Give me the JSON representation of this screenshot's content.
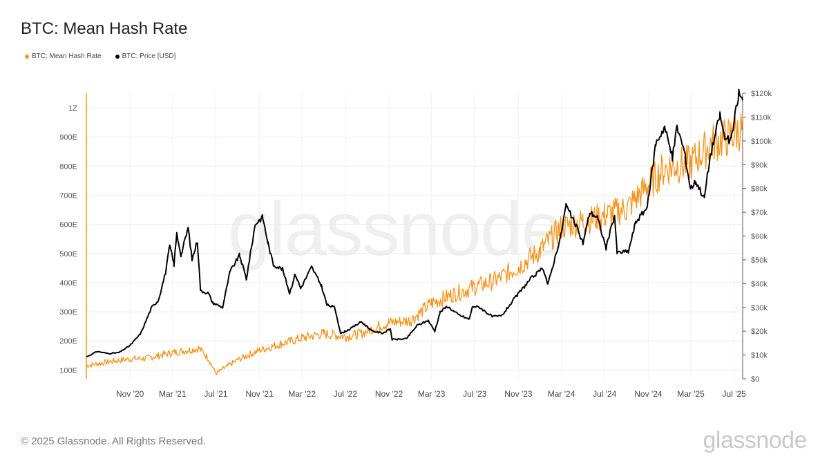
{
  "header": {
    "title": "BTC: Mean Hash Rate"
  },
  "legend": [
    {
      "label": "BTC: Mean Hash Rate",
      "color": "#f7931a"
    },
    {
      "label": "BTC: Price [USD]",
      "color": "#000000"
    }
  ],
  "watermark": "glassnode",
  "footer": {
    "copyright": "© 2025 Glassnode. All Rights Reserved.",
    "logo": "glassnode"
  },
  "chart_data": {
    "type": "line",
    "x_range": [
      "2020-07-01",
      "2025-07-25"
    ],
    "x_ticks": [
      {
        "label": "Nov '20",
        "date": "2020-11-01"
      },
      {
        "label": "Mar '21",
        "date": "2021-03-01"
      },
      {
        "label": "Jul '21",
        "date": "2021-07-01"
      },
      {
        "label": "Nov '21",
        "date": "2021-11-01"
      },
      {
        "label": "Mar '22",
        "date": "2022-03-01"
      },
      {
        "label": "Jul '22",
        "date": "2022-07-01"
      },
      {
        "label": "Nov '22",
        "date": "2022-11-01"
      },
      {
        "label": "Mar '23",
        "date": "2023-03-01"
      },
      {
        "label": "Jul '23",
        "date": "2023-07-01"
      },
      {
        "label": "Nov '23",
        "date": "2023-11-01"
      },
      {
        "label": "Mar '24",
        "date": "2024-03-01"
      },
      {
        "label": "Jul '24",
        "date": "2024-07-01"
      },
      {
        "label": "Nov '24",
        "date": "2024-11-01"
      },
      {
        "label": "Mar '25",
        "date": "2025-03-01"
      },
      {
        "label": "Jul '25",
        "date": "2025-07-01"
      }
    ],
    "y_left": {
      "unit": "EH/s",
      "range": [
        70,
        1050
      ],
      "ticks": [
        {
          "label": "100E",
          "value": 100
        },
        {
          "label": "200E",
          "value": 200
        },
        {
          "label": "300E",
          "value": 300
        },
        {
          "label": "400E",
          "value": 400
        },
        {
          "label": "500E",
          "value": 500
        },
        {
          "label": "600E",
          "value": 600
        },
        {
          "label": "700E",
          "value": 700
        },
        {
          "label": "800E",
          "value": 800
        },
        {
          "label": "900E",
          "value": 900
        },
        {
          "label": "1Z",
          "value": 1000
        }
      ]
    },
    "y_right": {
      "unit": "USD",
      "range": [
        0,
        120000
      ],
      "ticks": [
        {
          "label": "$0",
          "value": 0
        },
        {
          "label": "$10k",
          "value": 10000
        },
        {
          "label": "$20k",
          "value": 20000
        },
        {
          "label": "$30k",
          "value": 30000
        },
        {
          "label": "$40k",
          "value": 40000
        },
        {
          "label": "$50k",
          "value": 50000
        },
        {
          "label": "$60k",
          "value": 60000
        },
        {
          "label": "$70k",
          "value": 70000
        },
        {
          "label": "$80k",
          "value": 80000
        },
        {
          "label": "$90k",
          "value": 90000
        },
        {
          "label": "$100k",
          "value": 100000
        },
        {
          "label": "$110k",
          "value": 110000
        },
        {
          "label": "$120k",
          "value": 120000
        }
      ]
    },
    "grid": true,
    "legend_position": "top-left",
    "series": [
      {
        "name": "BTC: Mean Hash Rate",
        "axis": "left",
        "color": "#f7931a",
        "points": [
          [
            "2020-07-01",
            115
          ],
          [
            "2020-09-01",
            128
          ],
          [
            "2020-11-01",
            138
          ],
          [
            "2020-12-15",
            140
          ],
          [
            "2021-01-15",
            148
          ],
          [
            "2021-03-01",
            160
          ],
          [
            "2021-04-15",
            168
          ],
          [
            "2021-05-15",
            175
          ],
          [
            "2021-06-10",
            140
          ],
          [
            "2021-07-01",
            88
          ],
          [
            "2021-08-01",
            112
          ],
          [
            "2021-09-01",
            135
          ],
          [
            "2021-11-01",
            168
          ],
          [
            "2022-01-01",
            190
          ],
          [
            "2022-03-01",
            210
          ],
          [
            "2022-05-01",
            225
          ],
          [
            "2022-07-01",
            215
          ],
          [
            "2022-08-15",
            225
          ],
          [
            "2022-10-01",
            250
          ],
          [
            "2022-11-01",
            262
          ],
          [
            "2023-01-01",
            270
          ],
          [
            "2023-03-01",
            330
          ],
          [
            "2023-05-01",
            360
          ],
          [
            "2023-07-01",
            385
          ],
          [
            "2023-09-01",
            410
          ],
          [
            "2023-11-01",
            455
          ],
          [
            "2024-01-01",
            510
          ],
          [
            "2024-03-01",
            590
          ],
          [
            "2024-05-01",
            610
          ],
          [
            "2024-07-01",
            630
          ],
          [
            "2024-09-01",
            655
          ],
          [
            "2024-11-01",
            735
          ],
          [
            "2024-12-15",
            790
          ],
          [
            "2025-01-15",
            800
          ],
          [
            "2025-03-01",
            810
          ],
          [
            "2025-05-01",
            880
          ],
          [
            "2025-06-15",
            900
          ],
          [
            "2025-07-25",
            930
          ]
        ]
      },
      {
        "name": "BTC: Price [USD]",
        "axis": "right",
        "color": "#000000",
        "points": [
          [
            "2020-07-01",
            9200
          ],
          [
            "2020-08-01",
            11500
          ],
          [
            "2020-09-01",
            10600
          ],
          [
            "2020-10-01",
            11000
          ],
          [
            "2020-11-01",
            14000
          ],
          [
            "2020-12-01",
            19000
          ],
          [
            "2021-01-01",
            30000
          ],
          [
            "2021-01-20",
            33000
          ],
          [
            "2021-02-10",
            45000
          ],
          [
            "2021-02-21",
            56000
          ],
          [
            "2021-03-05",
            48000
          ],
          [
            "2021-03-13",
            61000
          ],
          [
            "2021-03-25",
            52000
          ],
          [
            "2021-04-14",
            63500
          ],
          [
            "2021-04-25",
            50000
          ],
          [
            "2021-05-10",
            58000
          ],
          [
            "2021-05-19",
            37000
          ],
          [
            "2021-06-10",
            36000
          ],
          [
            "2021-06-22",
            32000
          ],
          [
            "2021-07-20",
            30000
          ],
          [
            "2021-08-10",
            45000
          ],
          [
            "2021-09-06",
            52000
          ],
          [
            "2021-09-25",
            42000
          ],
          [
            "2021-10-20",
            65000
          ],
          [
            "2021-11-10",
            68000
          ],
          [
            "2021-11-25",
            57000
          ],
          [
            "2021-12-10",
            48000
          ],
          [
            "2022-01-05",
            46000
          ],
          [
            "2022-01-25",
            36000
          ],
          [
            "2022-02-10",
            44000
          ],
          [
            "2022-02-25",
            38000
          ],
          [
            "2022-03-28",
            47000
          ],
          [
            "2022-04-25",
            39000
          ],
          [
            "2022-05-10",
            31000
          ],
          [
            "2022-06-01",
            30000
          ],
          [
            "2022-06-18",
            19000
          ],
          [
            "2022-07-15",
            21000
          ],
          [
            "2022-08-15",
            24000
          ],
          [
            "2022-09-15",
            20000
          ],
          [
            "2022-10-15",
            19200
          ],
          [
            "2022-11-05",
            21000
          ],
          [
            "2022-11-10",
            16500
          ],
          [
            "2022-12-20",
            16800
          ],
          [
            "2023-01-20",
            22500
          ],
          [
            "2023-02-20",
            24500
          ],
          [
            "2023-03-10",
            20000
          ],
          [
            "2023-03-25",
            28000
          ],
          [
            "2023-04-14",
            30500
          ],
          [
            "2023-05-15",
            27000
          ],
          [
            "2023-06-15",
            25000
          ],
          [
            "2023-06-25",
            30500
          ],
          [
            "2023-07-15",
            30000
          ],
          [
            "2023-08-20",
            26000
          ],
          [
            "2023-09-15",
            26500
          ],
          [
            "2023-10-25",
            34500
          ],
          [
            "2023-12-05",
            42000
          ],
          [
            "2024-01-10",
            46500
          ],
          [
            "2024-01-23",
            39500
          ],
          [
            "2024-02-28",
            60000
          ],
          [
            "2024-03-14",
            73000
          ],
          [
            "2024-04-15",
            63000
          ],
          [
            "2024-05-01",
            57000
          ],
          [
            "2024-05-20",
            70000
          ],
          [
            "2024-06-10",
            68000
          ],
          [
            "2024-07-05",
            55000
          ],
          [
            "2024-07-29",
            69000
          ],
          [
            "2024-08-05",
            53000
          ],
          [
            "2024-09-06",
            53500
          ],
          [
            "2024-09-27",
            66000
          ],
          [
            "2024-10-29",
            72000
          ],
          [
            "2024-11-12",
            88000
          ],
          [
            "2024-11-22",
            99000
          ],
          [
            "2024-12-17",
            106000
          ],
          [
            "2025-01-08",
            93000
          ],
          [
            "2025-01-21",
            106000
          ],
          [
            "2025-02-10",
            96000
          ],
          [
            "2025-02-28",
            80000
          ],
          [
            "2025-03-15",
            83000
          ],
          [
            "2025-04-08",
            76000
          ],
          [
            "2025-04-25",
            94000
          ],
          [
            "2025-05-22",
            111000
          ],
          [
            "2025-06-05",
            101000
          ],
          [
            "2025-06-22",
            100000
          ],
          [
            "2025-07-14",
            120000
          ],
          [
            "2025-07-25",
            117000
          ]
        ]
      }
    ]
  }
}
